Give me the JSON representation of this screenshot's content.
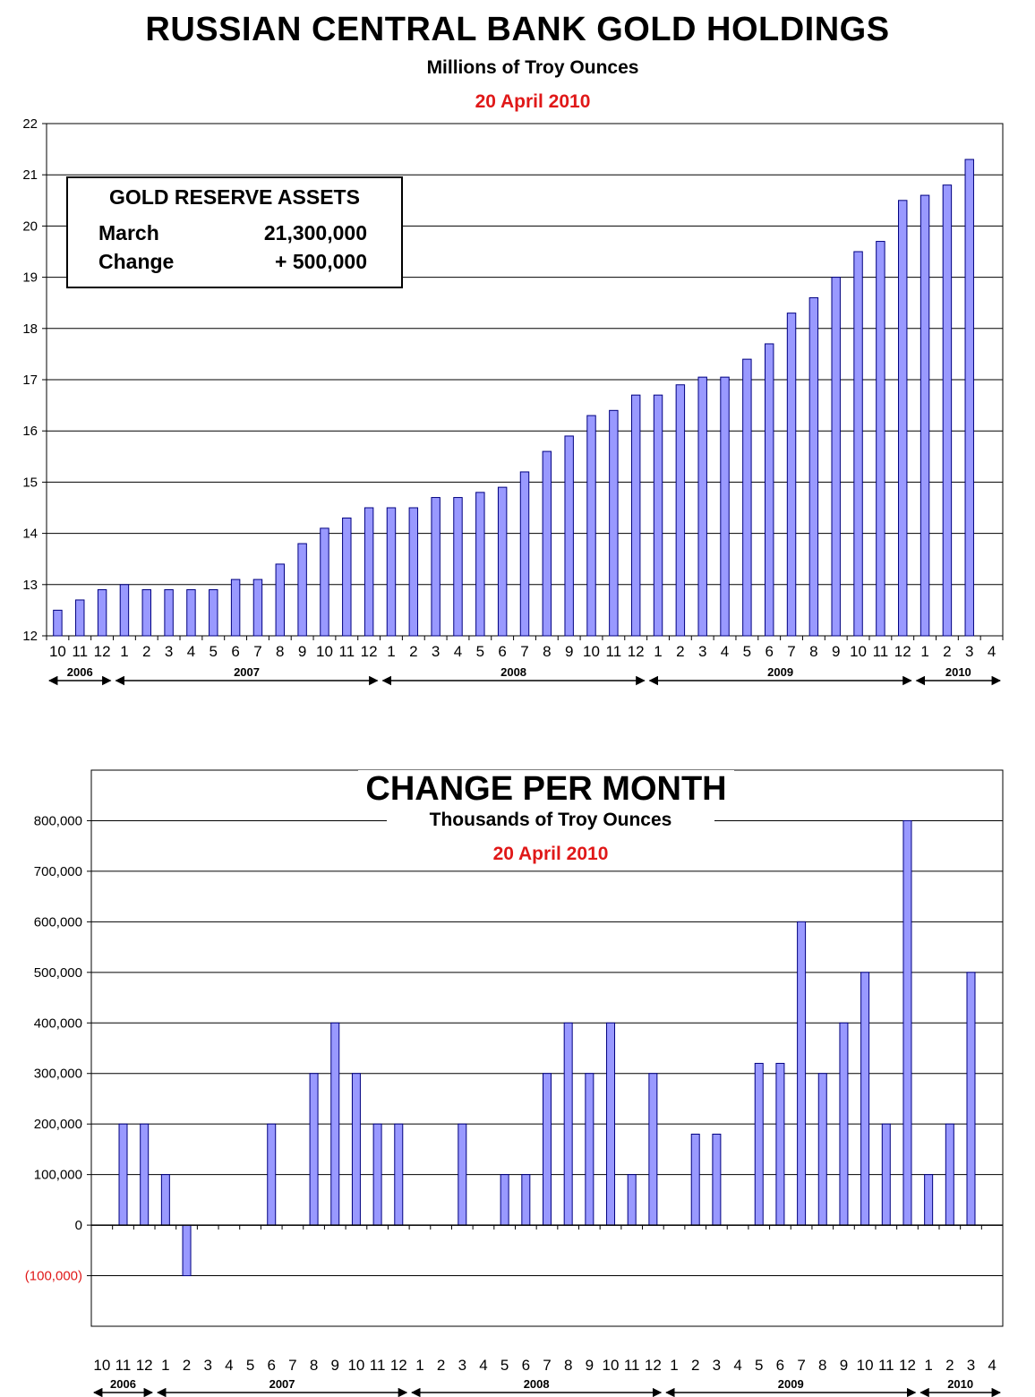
{
  "header": {
    "title": "RUSSIAN CENTRAL BANK GOLD HOLDINGS",
    "subtitle": "Millions of Troy Ounces",
    "date": "20 April 2010"
  },
  "legend": {
    "title": "GOLD RESERVE ASSETS",
    "row1_label": "March",
    "row1_value": "21,300,000",
    "row2_label": "Change",
    "row2_value": "+ 500,000"
  },
  "chart2_header": {
    "title": "CHANGE PER MONTH",
    "subtitle": "Thousands of Troy Ounces",
    "date": "20 April 2010"
  },
  "colors": {
    "bar_fill": "#9999ff",
    "bar_stroke": "#000080",
    "accent_red": "#e01818"
  },
  "chart_data": [
    {
      "type": "bar",
      "title": "RUSSIAN CENTRAL BANK GOLD HOLDINGS",
      "ylabel": "Millions of Troy Ounces",
      "ylim": [
        12,
        22
      ],
      "yticks": [
        "12",
        "13",
        "14",
        "15",
        "16",
        "17",
        "18",
        "19",
        "20",
        "21",
        "22"
      ],
      "categories": [
        "10",
        "11",
        "12",
        "1",
        "2",
        "3",
        "4",
        "5",
        "6",
        "7",
        "8",
        "9",
        "10",
        "11",
        "12",
        "1",
        "2",
        "3",
        "4",
        "5",
        "6",
        "7",
        "8",
        "9",
        "10",
        "11",
        "12",
        "1",
        "2",
        "3",
        "4",
        "5",
        "6",
        "7",
        "8",
        "9",
        "10",
        "11",
        "12",
        "1",
        "2",
        "3",
        "4"
      ],
      "values": [
        12.5,
        12.7,
        12.9,
        13.0,
        12.9,
        12.9,
        12.9,
        12.9,
        13.1,
        13.1,
        13.4,
        13.8,
        14.1,
        14.3,
        14.5,
        14.5,
        14.5,
        14.7,
        14.7,
        14.8,
        14.9,
        15.2,
        15.6,
        15.9,
        16.3,
        16.4,
        16.7,
        16.7,
        16.9,
        17.05,
        17.05,
        17.4,
        17.7,
        18.3,
        18.6,
        19.0,
        19.5,
        19.7,
        20.5,
        20.6,
        20.8,
        21.3,
        null
      ],
      "years": [
        {
          "label": "2006",
          "start": 0,
          "end": 2
        },
        {
          "label": "2007",
          "start": 3,
          "end": 14
        },
        {
          "label": "2008",
          "start": 15,
          "end": 26
        },
        {
          "label": "2009",
          "start": 27,
          "end": 38
        },
        {
          "label": "2010",
          "start": 39,
          "end": 42
        }
      ],
      "grid": true
    },
    {
      "type": "bar",
      "title": "CHANGE PER MONTH",
      "ylabel": "Thousands of Troy Ounces",
      "ylim": [
        -200000,
        900000
      ],
      "yticks": [
        {
          "value": -100000,
          "label": "(100,000)",
          "negative": true
        },
        {
          "value": 0,
          "label": "0"
        },
        {
          "value": 100000,
          "label": "100,000"
        },
        {
          "value": 200000,
          "label": "200,000"
        },
        {
          "value": 300000,
          "label": "300,000"
        },
        {
          "value": 400000,
          "label": "400,000"
        },
        {
          "value": 500000,
          "label": "500,000"
        },
        {
          "value": 600000,
          "label": "600,000"
        },
        {
          "value": 700000,
          "label": "700,000"
        },
        {
          "value": 800000,
          "label": "800,000"
        }
      ],
      "categories": [
        "10",
        "11",
        "12",
        "1",
        "2",
        "3",
        "4",
        "5",
        "6",
        "7",
        "8",
        "9",
        "10",
        "11",
        "12",
        "1",
        "2",
        "3",
        "4",
        "5",
        "6",
        "7",
        "8",
        "9",
        "10",
        "11",
        "12",
        "1",
        "2",
        "3",
        "4",
        "5",
        "6",
        "7",
        "8",
        "9",
        "10",
        "11",
        "12",
        "1",
        "2",
        "3",
        "4"
      ],
      "values": [
        null,
        200000,
        200000,
        100000,
        -100000,
        0,
        0,
        0,
        200000,
        0,
        300000,
        400000,
        300000,
        200000,
        200000,
        0,
        0,
        200000,
        0,
        100000,
        100000,
        300000,
        400000,
        300000,
        400000,
        100000,
        300000,
        0,
        180000,
        180000,
        0,
        320000,
        320000,
        600000,
        300000,
        400000,
        500000,
        200000,
        800000,
        100000,
        200000,
        500000,
        null
      ],
      "years": [
        {
          "label": "2006",
          "start": 0,
          "end": 2
        },
        {
          "label": "2007",
          "start": 3,
          "end": 14
        },
        {
          "label": "2008",
          "start": 15,
          "end": 26
        },
        {
          "label": "2009",
          "start": 27,
          "end": 38
        },
        {
          "label": "2010",
          "start": 39,
          "end": 42
        }
      ],
      "grid": true
    }
  ]
}
